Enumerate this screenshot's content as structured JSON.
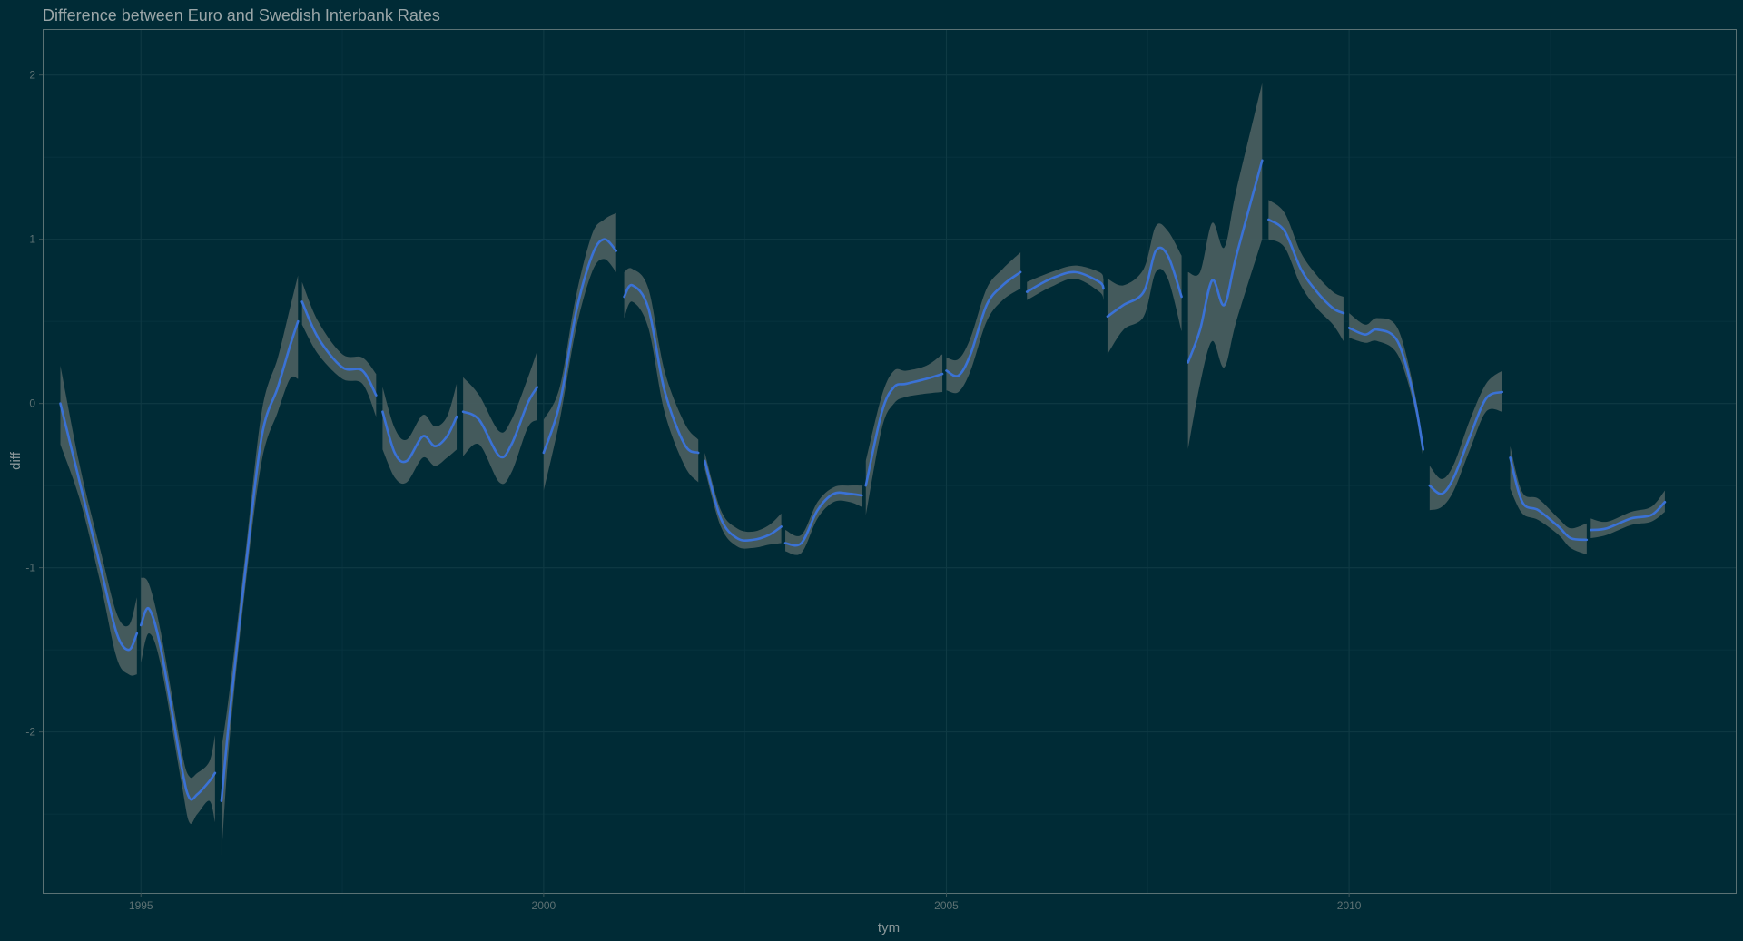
{
  "chart_data": {
    "type": "line",
    "title": "Difference between Euro and Swedish Interbank Rates",
    "xlabel": "tym",
    "ylabel": "diff",
    "xlim": [
      1993.78,
      2014.8
    ],
    "ylim": [
      -2.98,
      2.28
    ],
    "x_ticks": [
      1995,
      2000,
      2005,
      2010
    ],
    "x_tick_labels": [
      "1995",
      "2000",
      "2005",
      "2010"
    ],
    "y_ticks": [
      -2,
      -1,
      0,
      1,
      2
    ],
    "y_tick_labels": [
      "-2",
      "-1",
      "0",
      "1",
      "2"
    ],
    "grid": true,
    "legend": "none",
    "colors": {
      "background": "#002b36",
      "line": "#3a72d6",
      "ribbon": "#4a5e60",
      "grid": "#0f3a44",
      "border": "#5a7274"
    },
    "series": [
      {
        "segment": 1994,
        "points": [
          [
            1994.0,
            0.0,
            -0.25,
            0.23
          ],
          [
            1994.25,
            -0.5,
            -0.6,
            -0.4
          ],
          [
            1994.5,
            -1.0,
            -1.1,
            -0.9
          ],
          [
            1994.7,
            -1.4,
            -1.55,
            -1.28
          ],
          [
            1994.85,
            -1.5,
            -1.65,
            -1.35
          ],
          [
            1994.95,
            -1.4,
            -1.65,
            -1.18
          ]
        ]
      },
      {
        "segment": 1995,
        "points": [
          [
            1995.0,
            -1.35,
            -1.58,
            -1.06
          ],
          [
            1995.1,
            -1.25,
            -1.4,
            -1.1
          ],
          [
            1995.25,
            -1.5,
            -1.6,
            -1.4
          ],
          [
            1995.5,
            -2.2,
            -2.3,
            -2.1
          ],
          [
            1995.6,
            -2.4,
            -2.55,
            -2.27
          ],
          [
            1995.7,
            -2.38,
            -2.5,
            -2.25
          ],
          [
            1995.85,
            -2.3,
            -2.42,
            -2.18
          ],
          [
            1995.92,
            -2.25,
            -2.55,
            -2.02
          ]
        ]
      },
      {
        "segment": 1996,
        "points": [
          [
            1996.0,
            -2.42,
            -2.75,
            -2.1
          ],
          [
            1996.1,
            -1.9,
            -2.05,
            -1.75
          ],
          [
            1996.3,
            -1.0,
            -1.1,
            -0.9
          ],
          [
            1996.5,
            -0.2,
            -0.35,
            -0.05
          ],
          [
            1996.7,
            0.1,
            -0.05,
            0.28
          ],
          [
            1996.85,
            0.35,
            0.15,
            0.58
          ],
          [
            1996.95,
            0.5,
            0.15,
            0.78
          ]
        ]
      },
      {
        "segment": 1997,
        "points": [
          [
            1997.0,
            0.62,
            0.48,
            0.74
          ],
          [
            1997.2,
            0.4,
            0.3,
            0.5
          ],
          [
            1997.5,
            0.22,
            0.15,
            0.3
          ],
          [
            1997.75,
            0.2,
            0.12,
            0.28
          ],
          [
            1997.92,
            0.05,
            -0.08,
            0.18
          ]
        ]
      },
      {
        "segment": 1998,
        "points": [
          [
            1998.0,
            -0.05,
            -0.28,
            0.1
          ],
          [
            1998.15,
            -0.3,
            -0.45,
            -0.15
          ],
          [
            1998.3,
            -0.35,
            -0.48,
            -0.22
          ],
          [
            1998.5,
            -0.2,
            -0.33,
            -0.07
          ],
          [
            1998.65,
            -0.26,
            -0.38,
            -0.14
          ],
          [
            1998.8,
            -0.2,
            -0.33,
            -0.08
          ],
          [
            1998.92,
            -0.08,
            -0.28,
            0.12
          ]
        ]
      },
      {
        "segment": 1999,
        "points": [
          [
            1999.0,
            -0.05,
            -0.32,
            0.16
          ],
          [
            1999.2,
            -0.1,
            -0.25,
            0.05
          ],
          [
            1999.45,
            -0.32,
            -0.48,
            -0.17
          ],
          [
            1999.6,
            -0.25,
            -0.42,
            -0.1
          ],
          [
            1999.8,
            0.0,
            -0.15,
            0.15
          ],
          [
            1999.92,
            0.1,
            -0.1,
            0.32
          ]
        ]
      },
      {
        "segment": 2000,
        "points": [
          [
            2000.0,
            -0.3,
            -0.53,
            -0.1
          ],
          [
            2000.2,
            0.0,
            -0.1,
            0.1
          ],
          [
            2000.4,
            0.55,
            0.45,
            0.65
          ],
          [
            2000.6,
            0.9,
            0.8,
            1.03
          ],
          [
            2000.75,
            1.0,
            0.88,
            1.12
          ],
          [
            2000.9,
            0.93,
            0.8,
            1.16
          ]
        ]
      },
      {
        "segment": 2001,
        "points": [
          [
            2001.0,
            0.65,
            0.52,
            0.8
          ],
          [
            2001.1,
            0.72,
            0.62,
            0.82
          ],
          [
            2001.3,
            0.58,
            0.46,
            0.7
          ],
          [
            2001.5,
            0.08,
            -0.05,
            0.2
          ],
          [
            2001.75,
            -0.25,
            -0.38,
            -0.12
          ],
          [
            2001.92,
            -0.3,
            -0.48,
            -0.22
          ]
        ]
      },
      {
        "segment": 2002,
        "points": [
          [
            2002.0,
            -0.35,
            -0.4,
            -0.3
          ],
          [
            2002.2,
            -0.7,
            -0.75,
            -0.65
          ],
          [
            2002.4,
            -0.82,
            -0.87,
            -0.76
          ],
          [
            2002.6,
            -0.83,
            -0.88,
            -0.78
          ],
          [
            2002.8,
            -0.8,
            -0.86,
            -0.74
          ],
          [
            2002.95,
            -0.75,
            -0.85,
            -0.67
          ]
        ]
      },
      {
        "segment": 2003,
        "points": [
          [
            2003.0,
            -0.85,
            -0.9,
            -0.77
          ],
          [
            2003.2,
            -0.85,
            -0.91,
            -0.8
          ],
          [
            2003.4,
            -0.65,
            -0.7,
            -0.6
          ],
          [
            2003.6,
            -0.55,
            -0.6,
            -0.51
          ],
          [
            2003.8,
            -0.55,
            -0.6,
            -0.5
          ],
          [
            2003.95,
            -0.56,
            -0.63,
            -0.5
          ]
        ]
      },
      {
        "segment": 2004,
        "points": [
          [
            2004.0,
            -0.5,
            -0.68,
            -0.35
          ],
          [
            2004.2,
            -0.05,
            -0.15,
            0.05
          ],
          [
            2004.35,
            0.1,
            0.0,
            0.2
          ],
          [
            2004.5,
            0.12,
            0.04,
            0.2
          ],
          [
            2004.75,
            0.15,
            0.06,
            0.23
          ],
          [
            2004.95,
            0.18,
            0.07,
            0.3
          ]
        ]
      },
      {
        "segment": 2005,
        "points": [
          [
            2005.0,
            0.2,
            0.08,
            0.28
          ],
          [
            2005.15,
            0.17,
            0.07,
            0.27
          ],
          [
            2005.3,
            0.3,
            0.2,
            0.4
          ],
          [
            2005.5,
            0.6,
            0.5,
            0.7
          ],
          [
            2005.7,
            0.72,
            0.63,
            0.82
          ],
          [
            2005.92,
            0.8,
            0.7,
            0.92
          ]
        ]
      },
      {
        "segment": 2006,
        "points": [
          [
            2006.0,
            0.68,
            0.63,
            0.74
          ],
          [
            2006.3,
            0.76,
            0.71,
            0.8
          ],
          [
            2006.6,
            0.8,
            0.76,
            0.84
          ],
          [
            2006.9,
            0.74,
            0.68,
            0.8
          ],
          [
            2006.95,
            0.7,
            0.63,
            0.76
          ]
        ]
      },
      {
        "segment": 2007,
        "points": [
          [
            2007.0,
            0.53,
            0.3,
            0.76
          ],
          [
            2007.2,
            0.6,
            0.45,
            0.72
          ],
          [
            2007.45,
            0.68,
            0.53,
            0.82
          ],
          [
            2007.6,
            0.93,
            0.8,
            1.08
          ],
          [
            2007.75,
            0.9,
            0.76,
            1.05
          ],
          [
            2007.92,
            0.65,
            0.44,
            0.9
          ]
        ]
      },
      {
        "segment": 2008,
        "points": [
          [
            2008.0,
            0.25,
            -0.28,
            0.8
          ],
          [
            2008.15,
            0.45,
            0.12,
            0.8
          ],
          [
            2008.3,
            0.75,
            0.38,
            1.1
          ],
          [
            2008.45,
            0.6,
            0.22,
            0.95
          ],
          [
            2008.6,
            0.9,
            0.5,
            1.3
          ],
          [
            2008.92,
            1.48,
            1.0,
            1.95
          ]
        ]
      },
      {
        "segment": 2009,
        "points": [
          [
            2009.0,
            1.12,
            1.0,
            1.24
          ],
          [
            2009.2,
            1.05,
            0.95,
            1.16
          ],
          [
            2009.4,
            0.82,
            0.72,
            0.92
          ],
          [
            2009.6,
            0.68,
            0.58,
            0.78
          ],
          [
            2009.8,
            0.58,
            0.48,
            0.68
          ],
          [
            2009.93,
            0.55,
            0.38,
            0.65
          ]
        ]
      },
      {
        "segment": 2010,
        "points": [
          [
            2010.0,
            0.46,
            0.4,
            0.55
          ],
          [
            2010.2,
            0.42,
            0.37,
            0.48
          ],
          [
            2010.35,
            0.45,
            0.38,
            0.52
          ],
          [
            2010.6,
            0.38,
            0.3,
            0.46
          ],
          [
            2010.8,
            0.05,
            0.0,
            0.1
          ],
          [
            2010.92,
            -0.28,
            -0.33,
            -0.24
          ]
        ]
      },
      {
        "segment": 2011,
        "points": [
          [
            2011.0,
            -0.5,
            -0.65,
            -0.38
          ],
          [
            2011.15,
            -0.55,
            -0.63,
            -0.46
          ],
          [
            2011.3,
            -0.45,
            -0.53,
            -0.37
          ],
          [
            2011.5,
            -0.2,
            -0.28,
            -0.1
          ],
          [
            2011.7,
            0.03,
            -0.05,
            0.12
          ],
          [
            2011.9,
            0.07,
            -0.05,
            0.2
          ]
        ]
      },
      {
        "segment": 2012,
        "points": [
          [
            2012.0,
            -0.33,
            -0.52,
            -0.26
          ],
          [
            2012.15,
            -0.6,
            -0.67,
            -0.54
          ],
          [
            2012.35,
            -0.65,
            -0.71,
            -0.58
          ],
          [
            2012.6,
            -0.75,
            -0.8,
            -0.7
          ],
          [
            2012.75,
            -0.82,
            -0.88,
            -0.76
          ],
          [
            2012.95,
            -0.83,
            -0.92,
            -0.73
          ]
        ]
      },
      {
        "segment": 2013,
        "points": [
          [
            2013.0,
            -0.77,
            -0.82,
            -0.7
          ],
          [
            2013.2,
            -0.76,
            -0.8,
            -0.72
          ],
          [
            2013.5,
            -0.7,
            -0.74,
            -0.66
          ],
          [
            2013.75,
            -0.68,
            -0.72,
            -0.63
          ],
          [
            2013.92,
            -0.6,
            -0.66,
            -0.53
          ]
        ]
      }
    ]
  }
}
